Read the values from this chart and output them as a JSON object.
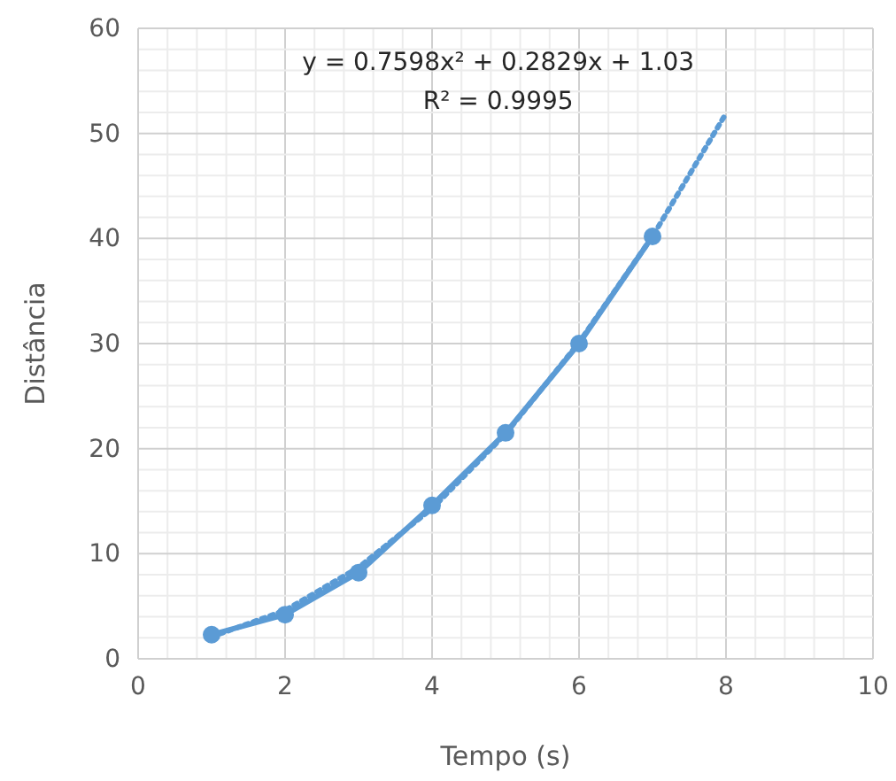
{
  "chart_data": {
    "type": "line",
    "xlabel": "Tempo (s)",
    "ylabel": "Distância",
    "xlim": [
      0,
      10
    ],
    "xticks": [
      0,
      2,
      4,
      6,
      8,
      10
    ],
    "ylim": [
      0,
      60
    ],
    "yticks": [
      0,
      10,
      20,
      30,
      40,
      50,
      60
    ],
    "grid": true,
    "series": [
      {
        "color": "#5b9bd5",
        "line_style": "dotted",
        "marker": "none",
        "x": [
          1,
          2,
          3,
          4,
          5,
          6,
          7,
          8
        ],
        "values": [
          2.1,
          4.6,
          8.7,
          14.3,
          21.4,
          30.1,
          40.2,
          51.9
        ]
      },
      {
        "color": "#5b9bd5",
        "line_style": "solid",
        "marker": "circle",
        "x": [
          1,
          2,
          3,
          4,
          5,
          6,
          7
        ],
        "values": [
          2.3,
          4.2,
          8.2,
          14.6,
          21.5,
          30,
          40.2
        ]
      }
    ],
    "annotations": [
      "y = 0.7598x² + 0.2829x + 1.03",
      "R² = 0.9995"
    ]
  }
}
